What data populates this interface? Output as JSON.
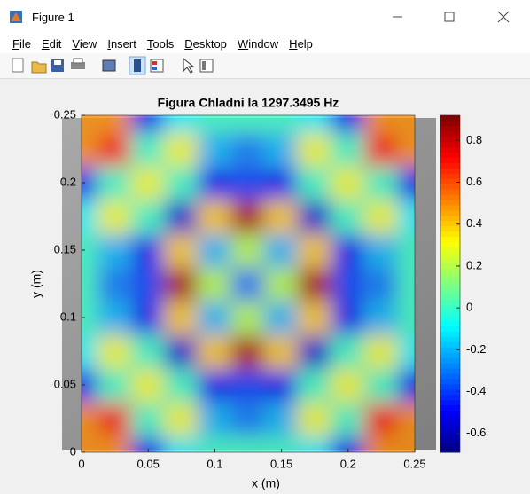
{
  "window": {
    "title": "Figure 1",
    "menu": [
      "File",
      "Edit",
      "View",
      "Insert",
      "Tools",
      "Desktop",
      "Window",
      "Help"
    ]
  },
  "chart_data": {
    "type": "heatmap",
    "title": "Figura Chladni la 1297.3495 Hz",
    "xlabel": "x (m)",
    "ylabel": "y (m)",
    "colormap": "jet",
    "x": [
      0,
      0.025,
      0.05,
      0.075,
      0.1,
      0.125,
      0.15,
      0.175,
      0.2,
      0.225,
      0.25
    ],
    "y": [
      0,
      0.025,
      0.05,
      0.075,
      0.1,
      0.125,
      0.15,
      0.175,
      0.2,
      0.225,
      0.25
    ],
    "z": [
      [
        0.5,
        0.5,
        -0.5,
        -0.1,
        0,
        0,
        0,
        -0.1,
        -0.5,
        0.5,
        0.5
      ],
      [
        0.5,
        0.7,
        0,
        0.3,
        -0.2,
        -0.3,
        -0.2,
        0.3,
        0,
        0.7,
        0.5
      ],
      [
        -0.5,
        0,
        0.3,
        0,
        -0.5,
        -0.4,
        -0.5,
        0,
        0.3,
        0,
        -0.5
      ],
      [
        -0.1,
        0.3,
        0,
        -0.55,
        0.4,
        0.85,
        0.4,
        -0.55,
        0,
        0.3,
        -0.1
      ],
      [
        0,
        -0.2,
        -0.5,
        0.4,
        -0.2,
        0.2,
        -0.2,
        0.4,
        -0.5,
        -0.2,
        0
      ],
      [
        0,
        -0.3,
        -0.4,
        0.85,
        0.2,
        -0.3,
        0.2,
        0.85,
        -0.4,
        -0.3,
        0
      ],
      [
        0,
        -0.2,
        -0.5,
        0.4,
        -0.2,
        0.2,
        -0.2,
        0.4,
        -0.5,
        -0.2,
        0
      ],
      [
        -0.1,
        0.3,
        0,
        -0.55,
        0.4,
        0.85,
        0.4,
        -0.55,
        0,
        0.3,
        -0.1
      ],
      [
        -0.5,
        0,
        0.3,
        0,
        -0.5,
        -0.4,
        -0.5,
        0,
        0.3,
        0,
        -0.5
      ],
      [
        0.5,
        0.7,
        0,
        0.3,
        -0.2,
        -0.3,
        -0.2,
        0.3,
        0,
        0.7,
        0.5
      ],
      [
        0.5,
        0.5,
        -0.5,
        -0.1,
        0,
        0,
        0,
        -0.1,
        -0.5,
        0.5,
        0.5
      ]
    ],
    "xlim": [
      0,
      0.25
    ],
    "ylim": [
      0,
      0.25
    ],
    "xticks": [
      0,
      0.05,
      0.1,
      0.15,
      0.2,
      0.25
    ],
    "yticks": [
      0,
      0.05,
      0.1,
      0.15,
      0.2,
      0.25
    ],
    "clim": [
      -0.69,
      0.92
    ],
    "cticks": [
      -0.6,
      -0.4,
      -0.2,
      0,
      0.2,
      0.4,
      0.6,
      0.8
    ]
  }
}
